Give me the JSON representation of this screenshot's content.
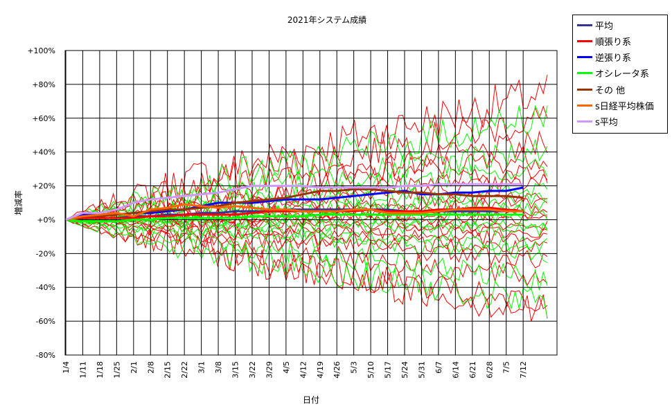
{
  "chart_data": {
    "type": "line",
    "title": "2021年システム成績",
    "xlabel": "日付",
    "ylabel": "増減率",
    "ylim": [
      -80,
      100
    ],
    "yticks": [
      100,
      80,
      60,
      40,
      20,
      0,
      -20,
      -40,
      -60,
      -80
    ],
    "ytick_labels": [
      "+100%",
      "+80%",
      "+60%",
      "+40%",
      "+20%",
      "+0%",
      "-20%",
      "-40%",
      "-60%",
      "-80%"
    ],
    "categories": [
      "1/4",
      "1/11",
      "1/18",
      "1/25",
      "2/1",
      "2/8",
      "2/15",
      "2/22",
      "3/1",
      "3/8",
      "3/15",
      "3/22",
      "3/29",
      "4/5",
      "4/12",
      "4/19",
      "4/26",
      "5/3",
      "5/10",
      "5/17",
      "5/24",
      "5/31",
      "6/7",
      "6/14",
      "6/21",
      "6/28",
      "7/5",
      "7/12"
    ],
    "legend_position": "right",
    "grid": true,
    "series": [
      {
        "name": "平均",
        "color": "#333399",
        "values": [
          0,
          1,
          1,
          1,
          2,
          2,
          3,
          3,
          4,
          4,
          5,
          5,
          5,
          6,
          6,
          6,
          6,
          6,
          6,
          6,
          5,
          5,
          5,
          5,
          5,
          5,
          5,
          5
        ]
      },
      {
        "name": "順張り系",
        "color": "#ff0000",
        "values": [
          0,
          1,
          1,
          1,
          1,
          2,
          2,
          3,
          3,
          3,
          3,
          4,
          5,
          5,
          5,
          5,
          5,
          5,
          6,
          5,
          5,
          5,
          6,
          6,
          7,
          7,
          6,
          5
        ]
      },
      {
        "name": "逆張り系",
        "color": "#0000ff",
        "values": [
          0,
          3,
          3,
          3,
          4,
          4,
          5,
          6,
          8,
          10,
          10,
          10,
          11,
          12,
          12,
          12,
          13,
          14,
          15,
          16,
          17,
          15,
          15,
          16,
          16,
          17,
          17,
          19
        ]
      },
      {
        "name": "オシレータ系",
        "color": "#00ff00",
        "values": [
          0,
          -1,
          -1,
          -1,
          0,
          0,
          1,
          1,
          1,
          1,
          1,
          2,
          2,
          2,
          2,
          3,
          3,
          3,
          3,
          3,
          3,
          3,
          3,
          3,
          3,
          3,
          3,
          3
        ]
      },
      {
        "name": "その 他",
        "color": "#993300",
        "values": [
          0,
          2,
          2,
          3,
          4,
          5,
          6,
          6,
          7,
          8,
          10,
          11,
          12,
          13,
          15,
          17,
          17,
          18,
          18,
          17,
          16,
          16,
          15,
          15,
          14,
          14,
          14,
          13
        ]
      },
      {
        "name": "s日経平均株価",
        "color": "#ff6600",
        "values": [
          0,
          2,
          3,
          4,
          2,
          6,
          7,
          9,
          8,
          7,
          8,
          7,
          6,
          6,
          5,
          5,
          5,
          6,
          6,
          4,
          4,
          4,
          5,
          6,
          6,
          6,
          5,
          5
        ]
      },
      {
        "name": "s平均",
        "color": "#cc99ff",
        "values": [
          0,
          4,
          4,
          6,
          10,
          12,
          13,
          14,
          15,
          16,
          18,
          20,
          20,
          20,
          20,
          19,
          19,
          19,
          19,
          19,
          20,
          20,
          21,
          21,
          21,
          21,
          21,
          21
        ]
      }
    ]
  }
}
